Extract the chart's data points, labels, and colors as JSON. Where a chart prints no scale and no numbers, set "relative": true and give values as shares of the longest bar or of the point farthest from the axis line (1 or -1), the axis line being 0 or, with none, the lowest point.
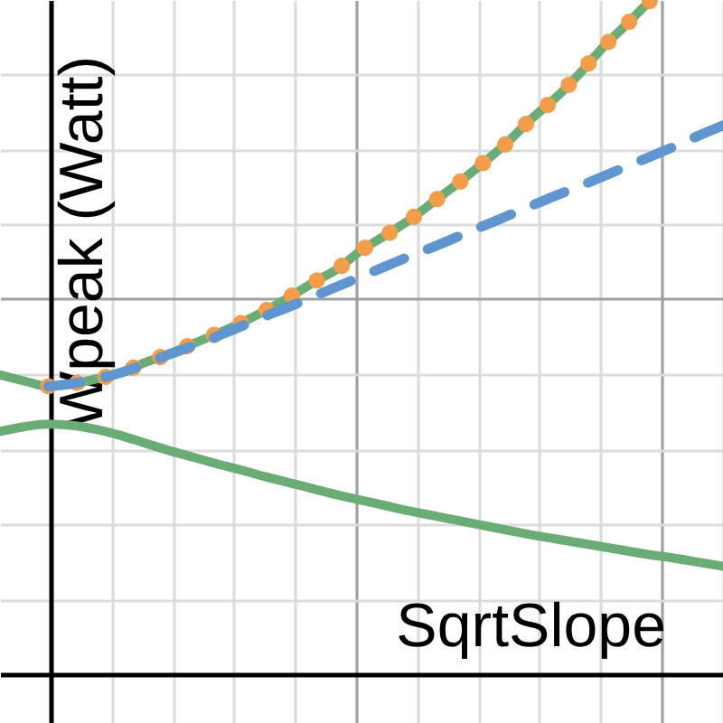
{
  "chart_data": {
    "type": "line",
    "xlabel": "SqrtSlope",
    "ylabel": "Wpeak (Watt)",
    "relative": true,
    "grid": true,
    "categories": [
      null,
      null,
      null,
      null,
      null,
      null,
      null,
      null,
      null,
      null,
      null,
      null,
      null,
      null,
      null,
      null,
      null,
      null,
      null,
      null,
      null,
      null,
      null,
      null,
      null,
      null,
      null,
      null,
      null,
      null,
      null
    ],
    "series": [
      {
        "color": "#6aac75",
        "line_style": "solid",
        "values": [
          0.444,
          0.435,
          0.427,
          0.431,
          0.438,
          0.447,
          0.462,
          0.475,
          0.49,
          0.505,
          0.521,
          0.539,
          0.559,
          0.581,
          0.601,
          0.629,
          0.651,
          0.674,
          0.701,
          0.728,
          0.757,
          0.787,
          0.822,
          0.853,
          0.889,
          0.929,
          0.964,
          1,
          null,
          null,
          null
        ]
      },
      {
        "color": "#6aac75",
        "line_style": "solid",
        "values": [
          0.36,
          0.367,
          0.371,
          0.369,
          0.363,
          0.354,
          0.343,
          0.332,
          0.322,
          0.312,
          0.303,
          0.293,
          0.284,
          0.275,
          0.266,
          0.258,
          0.25,
          0.242,
          0.235,
          0.228,
          0.221,
          0.214,
          0.207,
          0.201,
          0.195,
          0.189,
          0.183,
          0.177,
          0.172,
          0.166,
          0.16
        ]
      },
      {
        "color": "#f39c4a",
        "line_style": "dotted",
        "values": [
          null,
          null,
          0.427,
          0.431,
          0.438,
          0.447,
          0.462,
          0.475,
          0.49,
          0.505,
          0.521,
          0.539,
          0.559,
          0.581,
          0.601,
          0.629,
          0.651,
          0.674,
          0.701,
          0.728,
          0.757,
          0.787,
          0.822,
          0.853,
          0.889,
          0.929,
          0.964,
          1,
          null,
          null,
          null
        ]
      },
      {
        "color": "#5f96cf",
        "line_style": "dashed",
        "values": [
          null,
          null,
          0.427,
          0.431,
          0.438,
          0.447,
          0.46,
          0.474,
          0.487,
          0.501,
          0.516,
          0.531,
          0.545,
          0.56,
          0.575,
          0.59,
          0.605,
          0.62,
          0.634,
          0.649,
          0.664,
          0.679,
          0.694,
          0.709,
          0.723,
          0.738,
          0.753,
          0.768,
          0.783,
          0.799,
          0.814
        ]
      }
    ]
  }
}
